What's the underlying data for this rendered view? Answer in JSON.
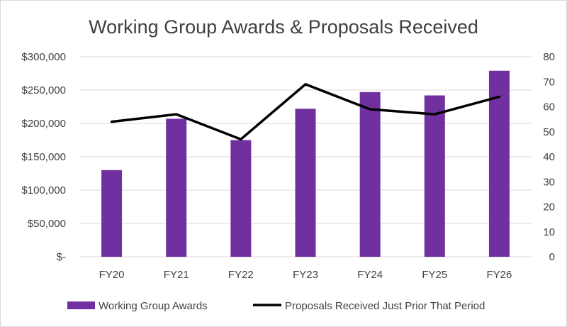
{
  "chart_data": {
    "type": "bar",
    "title": "Working Group Awards & Proposals Received",
    "categories": [
      "FY20",
      "FY21",
      "FY22",
      "FY23",
      "FY24",
      "FY25",
      "FY26"
    ],
    "series": [
      {
        "name": "Working Group Awards",
        "type": "bar",
        "axis": "left",
        "color": "#7030A0",
        "values": [
          130000,
          207000,
          175000,
          222000,
          247000,
          242000,
          279000
        ]
      },
      {
        "name": "Proposals Received Just Prior That Period",
        "type": "line",
        "axis": "right",
        "color": "#000000",
        "values": [
          54,
          57,
          47,
          69,
          59,
          57,
          64
        ]
      }
    ],
    "y_left": {
      "min": 0,
      "max": 300000,
      "ticks": [
        0,
        50000,
        100000,
        150000,
        200000,
        250000,
        300000
      ],
      "tick_labels": [
        "$-",
        "$50,000",
        "$100,000",
        "$150,000",
        "$200,000",
        "$250,000",
        "$300,000"
      ]
    },
    "y_right": {
      "min": 0,
      "max": 80,
      "ticks": [
        0,
        10,
        20,
        30,
        40,
        50,
        60,
        70,
        80
      ],
      "tick_labels": [
        "0",
        "10",
        "20",
        "30",
        "40",
        "50",
        "60",
        "70",
        "80"
      ]
    },
    "grid": true,
    "legend_position": "bottom"
  }
}
